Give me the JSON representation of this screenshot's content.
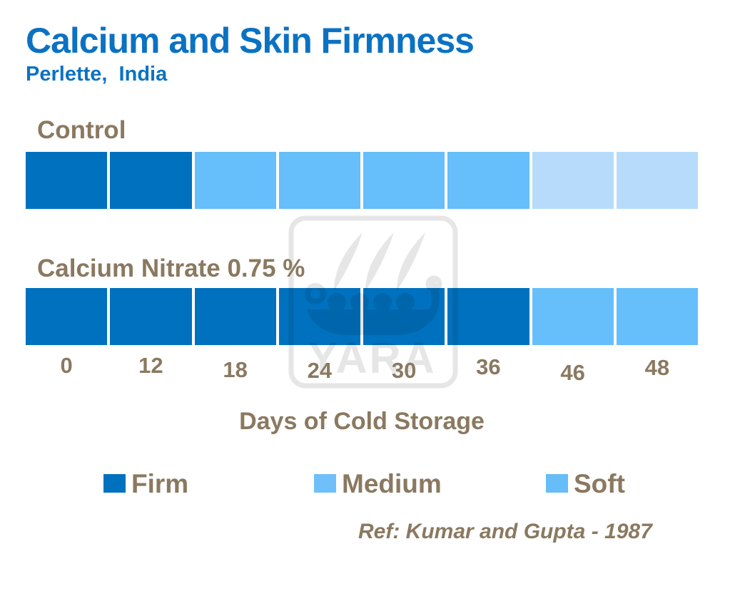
{
  "header": {
    "title": "Calcium and Skin Firmness",
    "subtitle": "Perlette,  India"
  },
  "colors": {
    "heading_blue": "#0B72C3",
    "text_brown": "#8A7960",
    "firm": "#0071BE",
    "medium": "#66BEFA",
    "soft": "#B7DCFB",
    "legend_medium": "#6FC0FA",
    "legend_soft": "#66BDF8",
    "watermark_gray": "#E6E6E6"
  },
  "chart_data": {
    "type": "bar",
    "variant": "qualitative-stacked-block-timeline",
    "title": "Calcium and Skin Firmness",
    "subtitle": "Perlette, India",
    "xlabel": "Days of Cold Storage",
    "x_labels": [
      "0",
      "12",
      "18",
      "24",
      "30",
      "36",
      "46",
      "48"
    ],
    "rows": [
      {
        "label": "Control",
        "blocks": [
          "firm",
          "firm",
          "medium",
          "medium",
          "medium",
          "medium",
          "soft",
          "soft"
        ],
        "firmness_by_day": {
          "0": "Firm",
          "12": "Firm",
          "18": "Medium",
          "24": "Medium",
          "30": "Medium",
          "36": "Medium",
          "46": "Soft",
          "48": "Soft"
        }
      },
      {
        "label": "Calcium Nitrate 0.75 %",
        "blocks": [
          "firm",
          "firm",
          "firm",
          "firm",
          "firm",
          "firm",
          "medium",
          "medium"
        ],
        "firmness_by_day": {
          "0": "Firm",
          "12": "Firm",
          "18": "Firm",
          "24": "Firm",
          "30": "Firm",
          "36": "Firm",
          "46": "Medium",
          "48": "Medium"
        }
      }
    ],
    "legend_entries": [
      "Firm",
      "Medium",
      "Soft"
    ],
    "legend_position": "bottom",
    "grid": false,
    "reference": "Ref: Kumar and Gupta - 1987"
  },
  "x_axis_title": "Days of Cold Storage",
  "legend": [
    {
      "label": "Firm",
      "color_key": "firm"
    },
    {
      "label": "Medium",
      "color_key": "legend_medium"
    },
    {
      "label": "Soft",
      "color_key": "legend_soft"
    }
  ],
  "reference": "Ref: Kumar and Gupta - 1987",
  "watermark": {
    "name": "yara-logo",
    "text": "YARA"
  }
}
